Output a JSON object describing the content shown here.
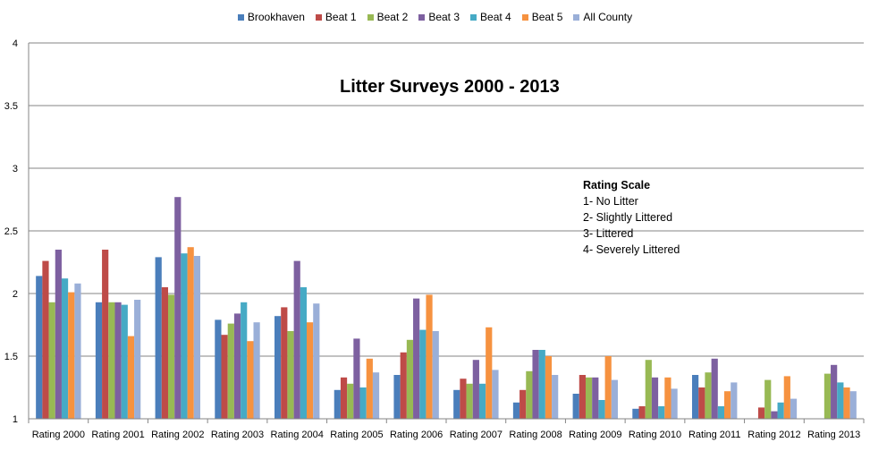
{
  "chart_data": {
    "type": "bar",
    "title": "Litter Surveys 2000 - 2013",
    "xlabel": "",
    "ylabel": "",
    "ylim": [
      1,
      4
    ],
    "yticks": [
      "1",
      "1.5",
      "2",
      "2.5",
      "3",
      "3.5",
      "4"
    ],
    "grid": true,
    "legend_position": "top",
    "categories": [
      "Rating 2000",
      "Rating 2001",
      "Rating 2002",
      "Rating 2003",
      "Rating 2004",
      "Rating 2005",
      "Rating 2006",
      "Rating 2007",
      "Rating 2008",
      "Rating 2009",
      "Rating 2010",
      "Rating 2011",
      "Rating 2012",
      "Rating 2013"
    ],
    "series": [
      {
        "name": "Brookhaven",
        "color": "#4a7ebb",
        "values": [
          2.14,
          1.93,
          2.29,
          1.79,
          1.82,
          1.23,
          1.35,
          1.23,
          1.13,
          1.2,
          1.08,
          1.35,
          null,
          null
        ]
      },
      {
        "name": "Beat 1",
        "color": "#be4b48",
        "values": [
          2.26,
          2.35,
          2.05,
          1.67,
          1.89,
          1.33,
          1.53,
          1.32,
          1.23,
          1.35,
          1.1,
          1.25,
          1.09,
          null
        ]
      },
      {
        "name": "Beat 2",
        "color": "#98b954",
        "values": [
          1.93,
          1.93,
          1.99,
          1.76,
          1.7,
          1.28,
          1.63,
          1.28,
          1.38,
          1.33,
          1.47,
          1.37,
          1.31,
          1.36
        ]
      },
      {
        "name": "Beat 3",
        "color": "#7d60a0",
        "values": [
          2.35,
          1.93,
          2.77,
          1.84,
          2.26,
          1.64,
          1.96,
          1.47,
          1.55,
          1.33,
          1.33,
          1.48,
          1.06,
          1.43
        ]
      },
      {
        "name": "Beat 4",
        "color": "#46aac5",
        "values": [
          2.12,
          1.91,
          2.32,
          1.93,
          2.05,
          1.25,
          1.71,
          1.28,
          1.55,
          1.15,
          1.1,
          1.1,
          1.13,
          1.29
        ]
      },
      {
        "name": "Beat 5",
        "color": "#f69240",
        "values": [
          2.01,
          1.66,
          2.37,
          1.62,
          1.77,
          1.48,
          1.99,
          1.73,
          1.5,
          1.5,
          1.33,
          1.22,
          1.34,
          1.25
        ]
      },
      {
        "name": "All County",
        "color": "#9aafd8",
        "values": [
          2.08,
          1.95,
          2.3,
          1.77,
          1.92,
          1.37,
          1.7,
          1.39,
          1.35,
          1.31,
          1.24,
          1.29,
          1.16,
          1.22
        ]
      }
    ],
    "annotation": {
      "heading": "Rating Scale",
      "lines": [
        "1- No Litter",
        "2- Slightly Littered",
        "3- Littered",
        "4- Severely Littered"
      ]
    }
  }
}
